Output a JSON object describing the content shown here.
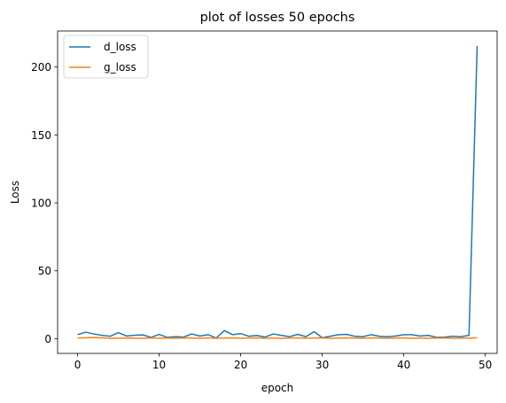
{
  "chart_data": {
    "type": "line",
    "title": "plot of losses 50 epochs",
    "xlabel": "epoch",
    "ylabel": "Loss",
    "xlim": [
      -2.45,
      51.45
    ],
    "ylim": [
      -10.8,
      226.5
    ],
    "xticks": [
      0,
      10,
      20,
      30,
      40,
      50
    ],
    "yticks": [
      0,
      50,
      100,
      150,
      200
    ],
    "grid": false,
    "legend_position": "upper left",
    "series": [
      {
        "name": "d_loss",
        "color": "#1f77b4",
        "x": [
          0,
          1,
          2,
          3,
          4,
          5,
          6,
          7,
          8,
          9,
          10,
          11,
          12,
          13,
          14,
          15,
          16,
          17,
          18,
          19,
          20,
          21,
          22,
          23,
          24,
          25,
          26,
          27,
          28,
          29,
          30,
          31,
          32,
          33,
          34,
          35,
          36,
          37,
          38,
          39,
          40,
          41,
          42,
          43,
          44,
          45,
          46,
          47,
          48,
          49
        ],
        "values": [
          3.0,
          4.8,
          3.5,
          2.5,
          1.8,
          4.5,
          2.0,
          2.6,
          2.8,
          1.0,
          3.2,
          1.0,
          1.5,
          1.2,
          3.5,
          2.0,
          3.0,
          0.5,
          6.0,
          3.0,
          3.8,
          1.8,
          2.4,
          1.2,
          3.5,
          2.5,
          1.5,
          3.2,
          1.5,
          5.2,
          0.8,
          1.8,
          3.0,
          3.2,
          1.8,
          1.5,
          3.0,
          1.8,
          1.5,
          2.0,
          3.0,
          3.0,
          2.0,
          2.5,
          1.0,
          1.2,
          1.8,
          1.5,
          2.5,
          215.5
        ]
      },
      {
        "name": "g_loss",
        "color": "#ff7f0e",
        "x": [
          0,
          1,
          2,
          3,
          4,
          5,
          6,
          7,
          8,
          9,
          10,
          11,
          12,
          13,
          14,
          15,
          16,
          17,
          18,
          19,
          20,
          21,
          22,
          23,
          24,
          25,
          26,
          27,
          28,
          29,
          30,
          31,
          32,
          33,
          34,
          35,
          36,
          37,
          38,
          39,
          40,
          41,
          42,
          43,
          44,
          45,
          46,
          47,
          48,
          49
        ],
        "values": [
          0.5,
          0.7,
          0.9,
          0.6,
          0.3,
          0.4,
          0.5,
          0.4,
          0.3,
          0.6,
          0.4,
          0.5,
          0.3,
          0.6,
          0.5,
          0.4,
          0.6,
          0.3,
          0.5,
          0.6,
          0.4,
          0.5,
          0.6,
          0.4,
          0.5,
          0.3,
          0.5,
          0.6,
          0.4,
          0.5,
          0.6,
          0.3,
          0.5,
          0.6,
          0.5,
          0.4,
          0.6,
          0.5,
          0.4,
          0.5,
          0.6,
          0.4,
          0.5,
          0.3,
          0.5,
          0.6,
          0.4,
          0.5,
          0.4,
          0.8
        ]
      }
    ]
  }
}
